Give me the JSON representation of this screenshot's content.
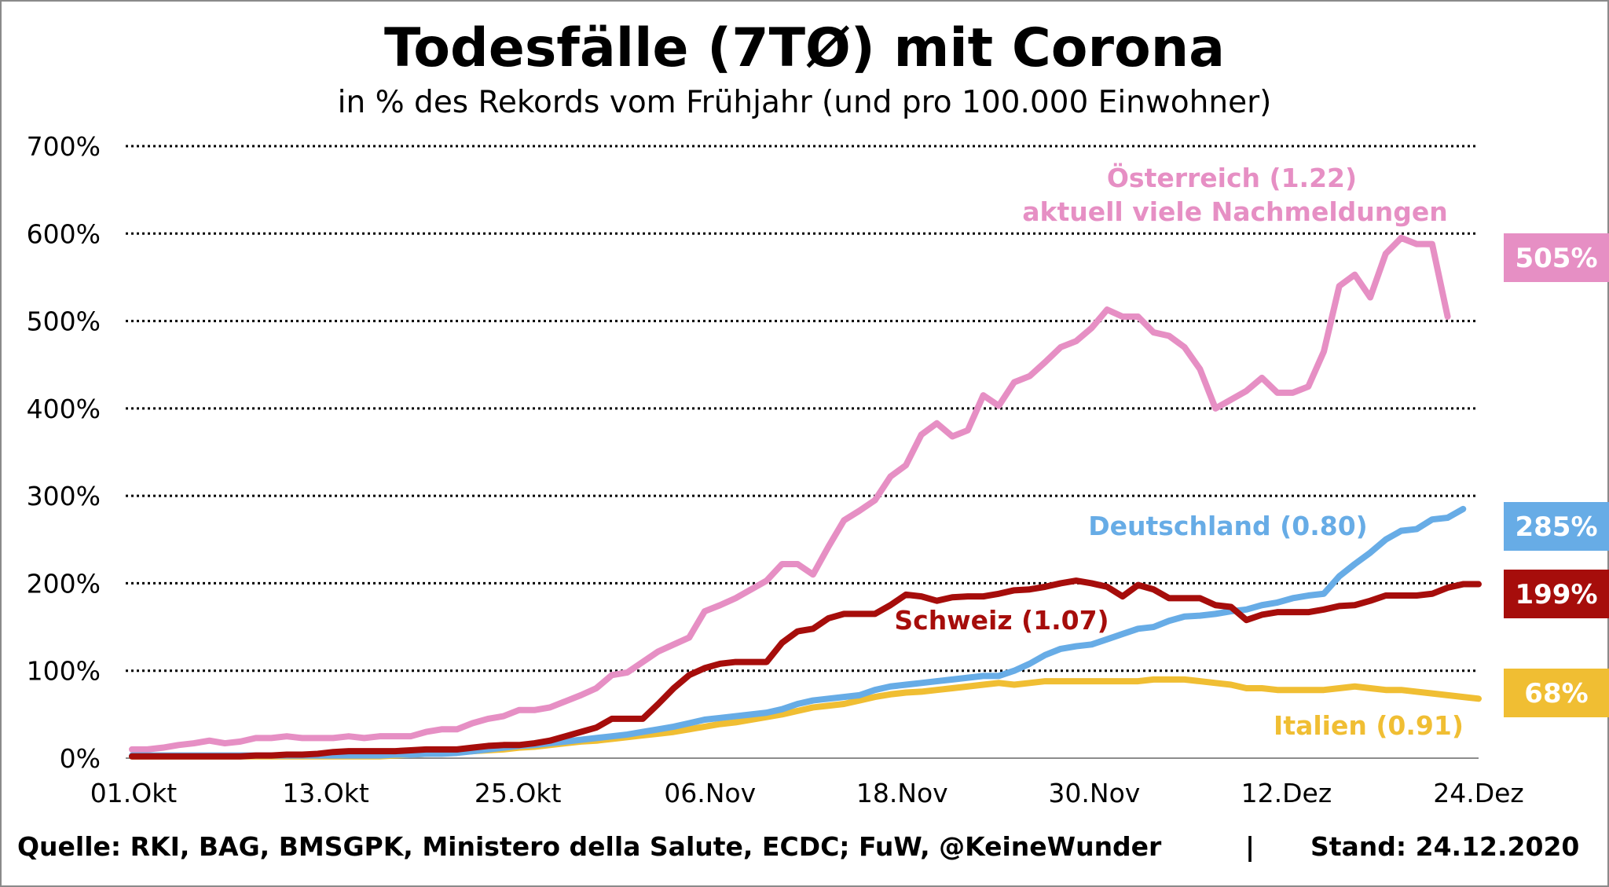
{
  "header": {
    "title": "Todesfälle (7TØ) mit Corona",
    "subtitle": "in % des Rekords vom Frühjahr (und pro 100.000 Einwohner)"
  },
  "footer": {
    "source": "Quelle: RKI, BAG, BMSGPK, Ministero della Salute, ECDC; FuW, @KeineWunder",
    "separator": "|",
    "stand": "Stand: 24.12.2020"
  },
  "colors": {
    "oesterreich": "#e68fc4",
    "deutschland": "#67ace6",
    "schweiz": "#a60d0b",
    "italien": "#f0be33"
  },
  "chart_data": {
    "type": "line",
    "title": "Todesfälle (7TØ) mit Corona",
    "subtitle": "in % des Rekords vom Frühjahr (und pro 100.000 Einwohner)",
    "x_start": "01.Okt",
    "x_end": "24.Dez",
    "x_tick_labels": [
      "01.Okt",
      "13.Okt",
      "25.Okt",
      "06.Nov",
      "18.Nov",
      "30.Nov",
      "12.Dez",
      "24.Dez"
    ],
    "y_tick_labels": [
      "0%",
      "100%",
      "200%",
      "300%",
      "400%",
      "500%",
      "600%",
      "700%"
    ],
    "ylim": [
      0,
      700
    ],
    "y_unit": "%",
    "grid": "horizontal dotted",
    "series": [
      {
        "key": "oesterreich",
        "name": "Österreich (1.22)",
        "note": "aktuell viele Nachmeldungen",
        "end_label": "505%",
        "values": [
          10,
          10,
          12,
          15,
          17,
          20,
          17,
          19,
          23,
          23,
          25,
          23,
          23,
          23,
          25,
          23,
          25,
          25,
          25,
          30,
          33,
          33,
          40,
          45,
          48,
          55,
          55,
          58,
          65,
          72,
          80,
          95,
          98,
          110,
          122,
          130,
          138,
          168,
          175,
          183,
          193,
          203,
          222,
          222,
          210,
          242,
          272,
          283,
          295,
          322,
          335,
          370,
          383,
          368,
          375,
          415,
          403,
          430,
          437,
          453,
          470,
          477,
          492,
          513,
          505,
          505,
          487,
          483,
          470,
          445,
          400,
          410,
          420,
          435,
          418,
          418,
          425,
          465,
          540,
          553,
          527,
          577,
          595,
          588,
          588,
          505
        ]
      },
      {
        "key": "deutschland",
        "name": "Deutschland (0.80)",
        "end_label": "285%",
        "values": [
          3,
          3,
          3,
          3,
          3,
          3,
          3,
          3,
          3,
          3,
          3,
          3,
          3,
          3,
          3,
          3,
          3,
          4,
          4,
          5,
          5,
          6,
          8,
          10,
          12,
          14,
          15,
          17,
          19,
          21,
          23,
          25,
          27,
          30,
          33,
          36,
          40,
          44,
          46,
          48,
          50,
          52,
          56,
          62,
          66,
          68,
          70,
          72,
          78,
          82,
          84,
          86,
          88,
          90,
          92,
          94,
          94,
          100,
          108,
          118,
          125,
          128,
          130,
          136,
          142,
          148,
          150,
          157,
          162,
          163,
          165,
          168,
          170,
          175,
          178,
          183,
          186,
          188,
          208,
          222,
          235,
          250,
          260,
          262,
          273,
          275,
          285
        ]
      },
      {
        "key": "schweiz",
        "name": "Schweiz (1.07)",
        "end_label": "199%",
        "values": [
          2,
          2,
          2,
          2,
          2,
          2,
          2,
          2,
          3,
          3,
          4,
          4,
          5,
          7,
          8,
          8,
          8,
          8,
          9,
          10,
          10,
          10,
          12,
          14,
          15,
          15,
          17,
          20,
          25,
          30,
          35,
          45,
          45,
          45,
          62,
          80,
          95,
          103,
          108,
          110,
          110,
          110,
          132,
          145,
          148,
          160,
          165,
          165,
          165,
          175,
          187,
          185,
          180,
          184,
          185,
          185,
          188,
          192,
          193,
          196,
          200,
          203,
          200,
          196,
          185,
          198,
          193,
          183,
          183,
          183,
          175,
          173,
          158,
          164,
          167,
          167,
          167,
          170,
          174,
          175,
          180,
          186,
          186,
          186,
          188,
          195,
          199,
          199
        ]
      },
      {
        "key": "italien",
        "name": "Italien (0.91)",
        "end_label": "68%",
        "values": [
          2,
          2,
          2,
          2,
          2,
          2,
          2,
          2,
          2,
          2,
          2,
          2,
          2,
          2,
          2,
          2,
          2,
          3,
          4,
          5,
          6,
          7,
          8,
          9,
          10,
          12,
          13,
          15,
          17,
          19,
          20,
          22,
          24,
          26,
          28,
          30,
          33,
          36,
          39,
          41,
          44,
          47,
          50,
          54,
          58,
          60,
          62,
          66,
          70,
          73,
          75,
          76,
          78,
          80,
          82,
          84,
          86,
          84,
          86,
          88,
          88,
          88,
          88,
          88,
          88,
          88,
          90,
          90,
          90,
          88,
          86,
          84,
          80,
          80,
          78,
          78,
          78,
          78,
          80,
          82,
          80,
          78,
          78,
          76,
          74,
          72,
          70,
          68
        ]
      }
    ]
  }
}
